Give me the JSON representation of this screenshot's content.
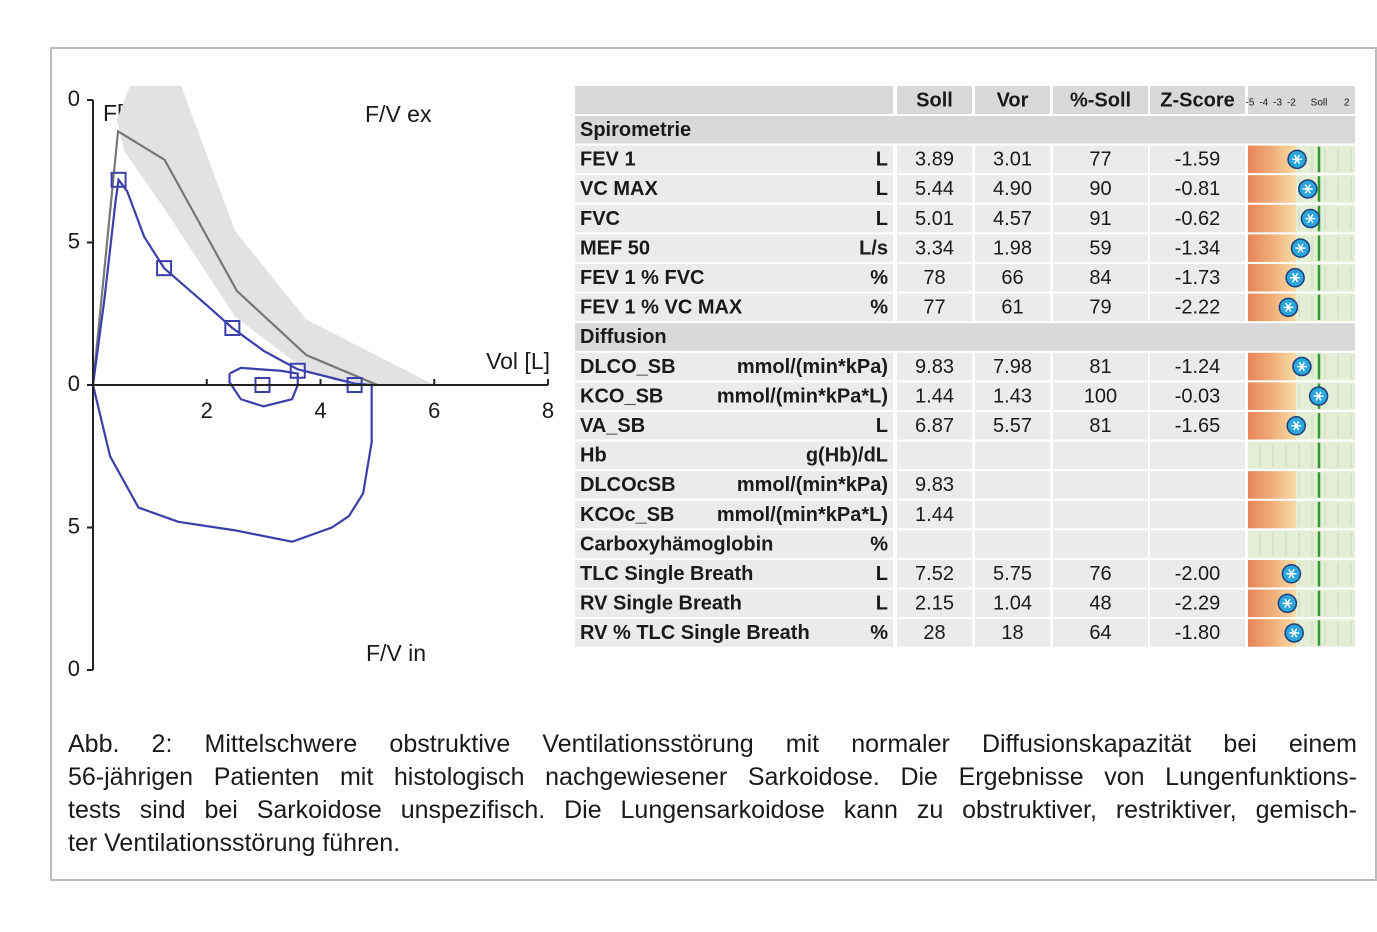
{
  "chart_data": {
    "type": "line",
    "y_label": "F[L/s]",
    "x_label": "Vol [L]",
    "annotations": [
      "F/V ex",
      "F/V in"
    ],
    "xlim": [
      0,
      8
    ],
    "xticks": [
      2,
      4,
      6,
      8
    ],
    "ylim": [
      -10,
      10.5
    ],
    "yticks": [
      {
        "value": -10,
        "label": "0"
      },
      {
        "value": -5,
        "label": "5"
      },
      0,
      5,
      {
        "value": 10,
        "label": "0"
      }
    ],
    "series": [
      {
        "style": "band",
        "color": "#e2e2e2",
        "x": [
          0.42,
          0.65,
          1.55,
          2.5,
          3.75,
          6.0,
          4.5,
          3.75,
          2.5,
          1.25,
          0.55
        ],
        "values": [
          9.3,
          10.5,
          10.5,
          5.4,
          2.3,
          0,
          0,
          0.5,
          2.4,
          6.2,
          8.2
        ]
      },
      {
        "style": "line",
        "color": "#777777",
        "x": [
          0,
          0.44,
          1.26,
          2.53,
          3.75,
          5.0
        ],
        "values": [
          0,
          8.9,
          7.9,
          3.3,
          1.05,
          0
        ]
      },
      {
        "style": "line",
        "color": "#3b3fa8",
        "x": [
          0,
          0.2,
          0.4,
          0.45,
          0.6,
          0.9,
          1.25,
          2.0,
          2.45,
          3.0,
          3.6,
          4.2,
          4.6,
          4.9,
          4.9,
          4.75,
          4.5,
          4.2,
          3.5,
          2.5,
          1.5,
          0.8,
          0.3,
          0
        ],
        "values": [
          0,
          3,
          6.5,
          7.2,
          6.8,
          5.2,
          4.1,
          2.8,
          2.0,
          1.2,
          0.55,
          0.25,
          0.05,
          0,
          -2,
          -3.8,
          -4.6,
          -5.0,
          -5.5,
          -5.1,
          -4.8,
          -4.3,
          -2.5,
          0
        ]
      },
      {
        "style": "line",
        "color": "#3b3fa8",
        "x": [
          2.4,
          2.6,
          3.3,
          3.6,
          3.6,
          3.5,
          3.0,
          2.6,
          2.4,
          2.4
        ],
        "values": [
          0.4,
          0.6,
          0.5,
          0.4,
          0,
          -0.5,
          -0.75,
          -0.5,
          0.1,
          0.4
        ]
      },
      {
        "style": "markers",
        "color": "#3b3fa8",
        "x": [
          0.45,
          1.25,
          2.45,
          3.6,
          2.98,
          4.6
        ],
        "values": [
          7.2,
          4.1,
          2.0,
          0.5,
          0.0,
          0.0
        ]
      }
    ]
  },
  "table": {
    "columns": [
      "Soll",
      "Vor",
      "%-Soll",
      "Z-Score"
    ],
    "zscale": [
      -5,
      -4,
      -3,
      -2,
      {
        "value": 0,
        "label": "Soll"
      },
      2
    ],
    "rows": [
      {
        "section": "Spirometrie"
      },
      {
        "name": "FEV 1",
        "unit": "L",
        "soll": 3.89,
        "vor": 3.01,
        "pct": 77,
        "z": -1.59
      },
      {
        "name": "VC MAX",
        "unit": "L",
        "soll": 5.44,
        "vor": {
          "value": 4.9,
          "label": "4.90"
        },
        "pct": 90,
        "z": -0.81
      },
      {
        "name": "FVC",
        "unit": "L",
        "soll": 5.01,
        "vor": 4.57,
        "pct": 91,
        "z": -0.62
      },
      {
        "name": "MEF 50",
        "unit": "L/s",
        "soll": 3.34,
        "vor": 1.98,
        "pct": 59,
        "z": -1.34
      },
      {
        "name": "FEV 1 % FVC",
        "unit": "%",
        "soll": 78,
        "vor": 66,
        "pct": 84,
        "z": -1.73
      },
      {
        "name": "FEV 1 % VC MAX",
        "unit": "%",
        "soll": 77,
        "vor": 61,
        "pct": 79,
        "z": -2.22
      },
      {
        "section": "Diffusion"
      },
      {
        "name": "DLCO_SB",
        "unit": "mmol/(min*kPa)",
        "soll": 9.83,
        "vor": 7.98,
        "pct": 81,
        "z": -1.24
      },
      {
        "name": "KCO_SB",
        "unit": "mmol/(min*kPa*L)",
        "soll": 1.44,
        "vor": 1.43,
        "pct": 100,
        "z": -0.03
      },
      {
        "name": "VA_SB",
        "unit": "L",
        "soll": 6.87,
        "vor": 5.57,
        "pct": 81,
        "z": -1.65
      },
      {
        "name": "Hb",
        "unit": "g(Hb)/dL"
      },
      {
        "name": "DLCOcSB",
        "unit": "mmol/(min*kPa)",
        "soll": 9.83
      },
      {
        "name": "KCOc_SB",
        "unit": "mmol/(min*kPa*L)",
        "soll": 1.44
      },
      {
        "name": "Carboxyhämoglobin",
        "unit": "%"
      },
      {
        "name": "TLC Single Breath",
        "unit": "L",
        "soll": 7.52,
        "vor": 5.75,
        "pct": 76,
        "z": {
          "value": -2,
          "label": "-2.00"
        }
      },
      {
        "name": "RV Single Breath",
        "unit": "L",
        "soll": 2.15,
        "vor": 1.04,
        "pct": 48,
        "z": -2.29
      },
      {
        "name": "RV % TLC Single Breath",
        "unit": "%",
        "soll": 28,
        "vor": 18,
        "pct": 64,
        "z": {
          "value": -1.8,
          "label": "-1.80"
        }
      }
    ]
  },
  "caption": {
    "lines": [
      "Abb. 2: Mittelschwere obstruktive Ventilationsstörung mit normaler Diffusionskapazität bei einem",
      "56-jährigen Patienten mit histologisch nachgewiesener Sarkoidose. Die Ergebnisse von Lungenfunktions-",
      "tests sind bei Sarkoidose unspezifisch. Die Lungensarkoidose kann zu obstruktiver, restriktiver, gemisch-",
      "ter Ventilationsstörung führen."
    ]
  }
}
